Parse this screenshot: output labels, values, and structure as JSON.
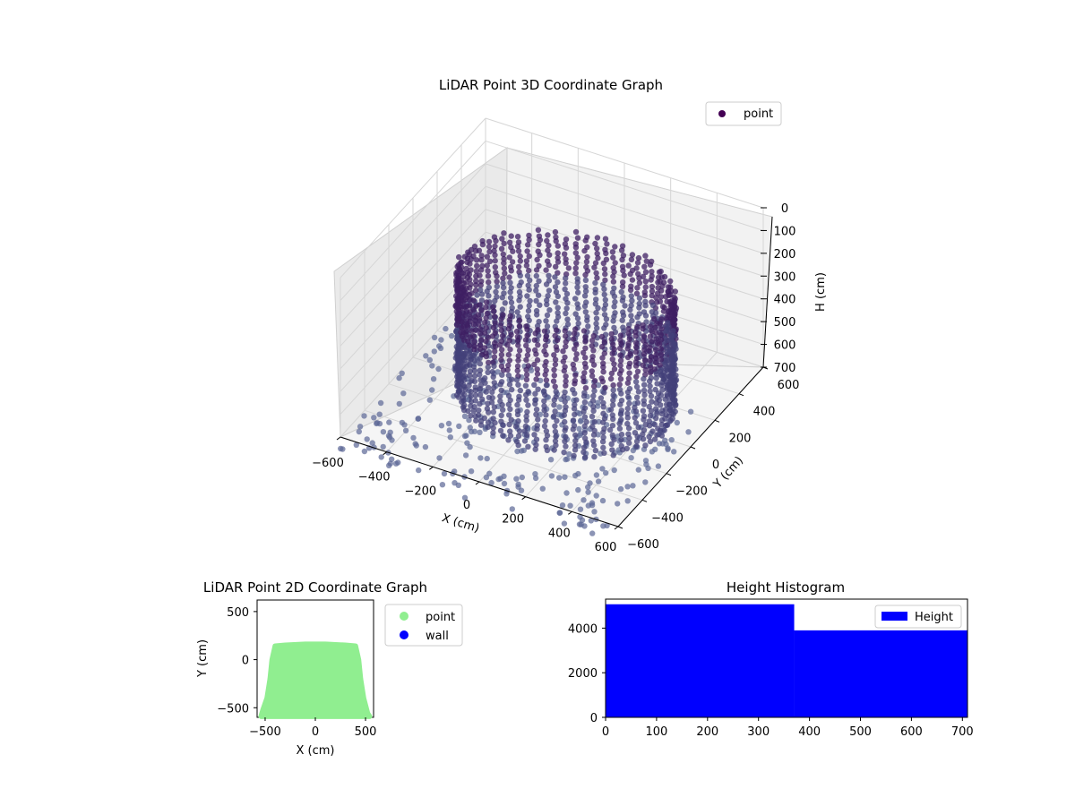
{
  "figure": {
    "background": "#ffffff",
    "point_color_3d": "#3b2d6e",
    "point_color_2d": "#90ee90",
    "wall_color": "#0000ff",
    "hist_color": "#0000ff"
  },
  "chart_data": [
    {
      "type": "scatter",
      "projection": "3d",
      "title": "LiDAR Point 3D Coordinate Graph",
      "xlabel": "X (cm)",
      "ylabel": "Y (cm)",
      "zlabel": "H (cm)",
      "xlim": [
        -600,
        600
      ],
      "ylim": [
        -600,
        600
      ],
      "zlim": [
        700,
        0
      ],
      "zaxis_inverted": true,
      "x_ticks": [
        "−600",
        "−400",
        "−200",
        "0",
        "200",
        "400",
        "600"
      ],
      "y_ticks": [
        "−600",
        "−400",
        "−200",
        "0",
        "200",
        "400",
        "600"
      ],
      "z_ticks": [
        "0",
        "100",
        "200",
        "300",
        "400",
        "500",
        "600",
        "700"
      ],
      "grid": true,
      "legend": {
        "placement": "top-right",
        "entries": [
          "point"
        ]
      },
      "series": [
        {
          "name": "point",
          "color": "#3b2d6e",
          "colormap": "viridis (dark)",
          "description_shape": "ring of vertical point columns forming a room outline, floor points spread below"
        }
      ]
    },
    {
      "type": "scatter",
      "title": "LiDAR Point 2D Coordinate Graph",
      "xlabel": "X (cm)",
      "ylabel": "Y (cm)",
      "xlim": [
        -580,
        580
      ],
      "ylim": [
        -600,
        620
      ],
      "x_ticks": [
        "−500",
        "0",
        "500"
      ],
      "y_ticks": [
        "500",
        "0",
        "−500"
      ],
      "grid": false,
      "legend": {
        "placement": "outside-right",
        "entries": [
          "point",
          "wall"
        ]
      },
      "series": [
        {
          "name": "point",
          "color": "#90ee90",
          "outline": [
            [
              -400,
              140
            ],
            [
              -300,
              150
            ],
            [
              -100,
              160
            ],
            [
              100,
              160
            ],
            [
              300,
              150
            ],
            [
              400,
              140
            ],
            [
              430,
              0
            ],
            [
              450,
              -200
            ],
            [
              480,
              -400
            ],
            [
              520,
              -560
            ],
            [
              540,
              -590
            ],
            [
              -540,
              -590
            ],
            [
              -520,
              -520
            ],
            [
              -480,
              -400
            ],
            [
              -450,
              -200
            ],
            [
              -430,
              0
            ]
          ]
        },
        {
          "name": "wall",
          "color": "#0000ff",
          "points": []
        }
      ]
    },
    {
      "type": "bar",
      "subtype": "histogram",
      "title": "Height Histogram",
      "xlabel": "",
      "ylabel": "",
      "xlim": [
        0,
        710
      ],
      "ylim": [
        0,
        5300
      ],
      "x_ticks": [
        "0",
        "100",
        "200",
        "300",
        "400",
        "500",
        "600",
        "700"
      ],
      "y_ticks": [
        "0",
        "2000",
        "4000"
      ],
      "legend": {
        "placement": "top-right",
        "entries": [
          "Height"
        ]
      },
      "bins": [
        {
          "x0": 0,
          "x1": 370,
          "count": 5070
        },
        {
          "x0": 370,
          "x1": 710,
          "count": 3900
        }
      ],
      "series": [
        {
          "name": "Height",
          "color": "#0000ff"
        }
      ]
    }
  ]
}
